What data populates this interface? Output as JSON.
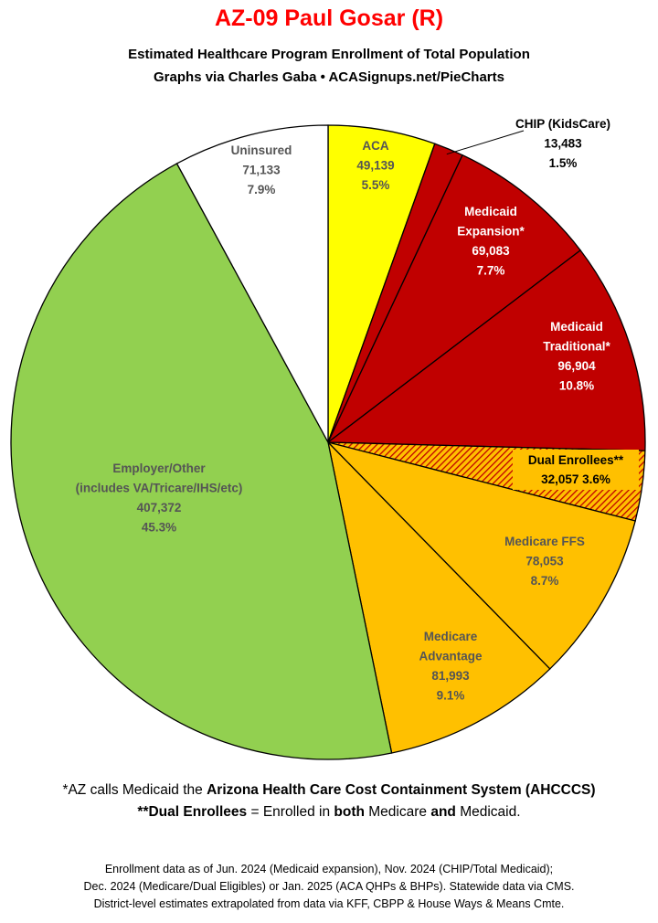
{
  "header": {
    "title": "AZ-09 Paul Gosar (R)",
    "subtitle": "Estimated Healthcare Program Enrollment of Total Population",
    "credit": "Graphs via Charles Gaba  •  ACASignups.net/PieCharts"
  },
  "notes": {
    "note1_prefix": "*AZ calls Medicaid the ",
    "note1_bold": "Arizona Health Care Cost Containment System (AHCCCS)",
    "note2_bold1": "**Dual Enrollees",
    "note2_mid1": " = Enrolled in ",
    "note2_bold2": "both",
    "note2_mid2": " Medicare ",
    "note2_bold3": "and",
    "note2_end": " Medicaid."
  },
  "footer": {
    "line1": "Enrollment data as of Jun. 2024 (Medicaid expansion), Nov. 2024 (CHIP/Total Medicaid);",
    "line2": "Dec. 2024 (Medicare/Dual Eligibles) or Jan. 2025 (ACA QHPs & BHPs). Statewide data via CMS.",
    "line3": "District-level estimates extrapolated from data via KFF, CBPP & House Ways & Means Cmte."
  },
  "chart_data": {
    "type": "pie",
    "title": "AZ-09 Paul Gosar (R)",
    "slices": [
      {
        "name": "ACA",
        "label_lines": [
          "ACA",
          "49,139",
          "5.5%"
        ],
        "value": 49139,
        "percent": 5.5,
        "color": "#ffff00",
        "text_color": "#555555"
      },
      {
        "name": "CHIP (KidsCare)",
        "label_lines": [
          "CHIP (KidsCare)",
          "13,483",
          "1.5%"
        ],
        "value": 13483,
        "percent": 1.5,
        "color": "#c00000",
        "text_color": "#000000"
      },
      {
        "name": "Medicaid Expansion*",
        "label_lines": [
          "Medicaid",
          "Expansion*",
          "69,083",
          "7.7%"
        ],
        "value": 69083,
        "percent": 7.7,
        "color": "#c00000",
        "text_color": "#ffffff"
      },
      {
        "name": "Medicaid Traditional*",
        "label_lines": [
          "Medicaid",
          "Traditional*",
          "96,904",
          "10.8%"
        ],
        "value": 96904,
        "percent": 10.8,
        "color": "#c00000",
        "text_color": "#ffffff"
      },
      {
        "name": "Dual Enrollees**",
        "label_lines": [
          "Dual Enrollees**",
          "32,057 3.6%"
        ],
        "value": 32057,
        "percent": 3.6,
        "color": "#ffc000",
        "hatch_color": "#c00000",
        "text_color": "#000000"
      },
      {
        "name": "Medicare FFS",
        "label_lines": [
          "Medicare FFS",
          "78,053",
          "8.7%"
        ],
        "value": 78053,
        "percent": 8.7,
        "color": "#ffc000",
        "text_color": "#555555"
      },
      {
        "name": "Medicare Advantage",
        "label_lines": [
          "Medicare",
          "Advantage",
          "81,993",
          "9.1%"
        ],
        "value": 81993,
        "percent": 9.1,
        "color": "#ffc000",
        "text_color": "#555555"
      },
      {
        "name": "Employer/Other (includes VA/Tricare/IHS/etc)",
        "label_lines": [
          "Employer/Other",
          "(includes VA/Tricare/IHS/etc)",
          "407,372",
          "45.3%"
        ],
        "value": 407372,
        "percent": 45.3,
        "color": "#92d050",
        "text_color": "#555555"
      },
      {
        "name": "Uninsured",
        "label_lines": [
          "Uninsured",
          "71,133",
          "7.9%"
        ],
        "value": 71133,
        "percent": 7.9,
        "color": "#ffffff",
        "text_color": "#555555"
      }
    ],
    "legend": "none"
  }
}
